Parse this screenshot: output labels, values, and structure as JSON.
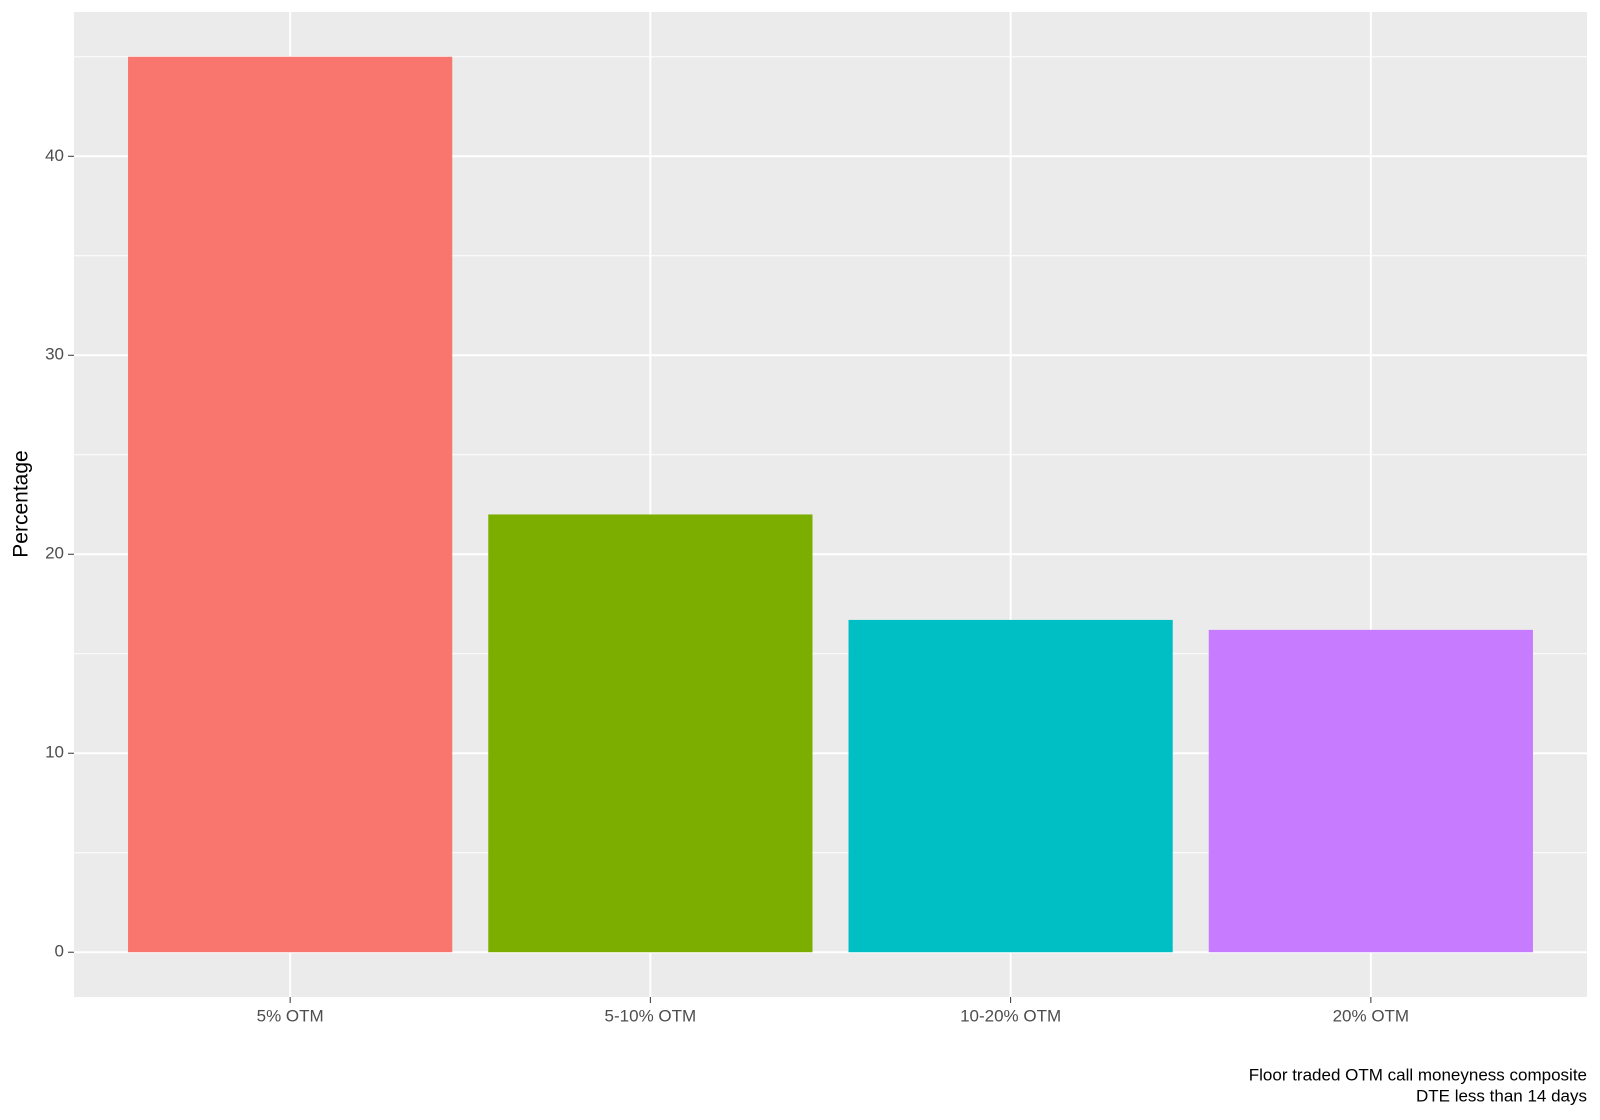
{
  "chart_data": {
    "type": "bar",
    "y_label": "Percentage",
    "caption": [
      "Floor traded OTM call moneyness composite",
      "DTE less than 14 days"
    ],
    "categories": [
      "5% OTM",
      "5-10% OTM",
      "10-20% OTM",
      "20% OTM"
    ],
    "values": [
      45,
      22,
      16.7,
      16.2
    ],
    "colors": [
      "#F8766D",
      "#7CAE00",
      "#00BFC4",
      "#C77CFF"
    ],
    "ylim": [
      -2.25,
      47.25
    ],
    "yticks": [
      0,
      10,
      20,
      30,
      40
    ],
    "minor_yticks": [
      5,
      15,
      25,
      35,
      45
    ],
    "grid": true
  }
}
